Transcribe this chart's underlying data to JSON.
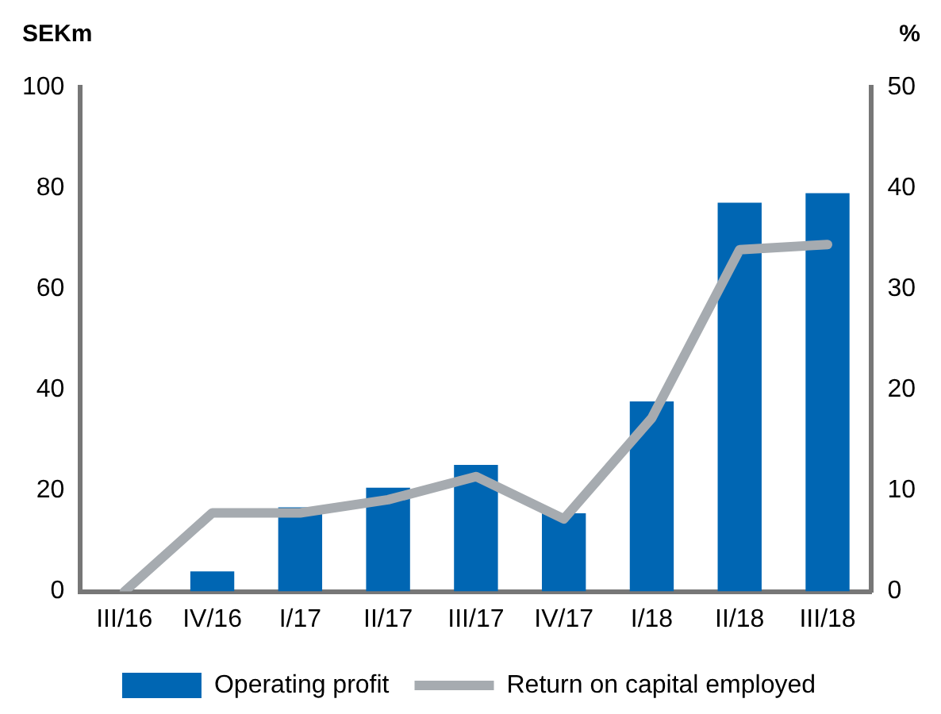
{
  "chart_data": {
    "type": "bar",
    "ylabel": "SEKm",
    "y2label": "%",
    "categories": [
      "III/16",
      "IV/16",
      "I/17",
      "II/17",
      "III/17",
      "IV/17",
      "I/18",
      "II/18",
      "III/18"
    ],
    "series": [
      {
        "name": "Operating profit",
        "color": "#0066b3",
        "values": [
          0,
          4,
          16.7,
          20.6,
          25.1,
          15.5,
          37.7,
          77.1,
          79.0
        ]
      },
      {
        "name": "Return on capital employed",
        "type": "line",
        "axis": "y2",
        "color": "#a6abb0",
        "values": [
          0,
          7.8,
          7.8,
          9.1,
          11.4,
          7.2,
          17.2,
          33.9,
          34.4
        ]
      }
    ],
    "ylim": [
      0,
      100
    ],
    "yticks": [
      0,
      20,
      40,
      60,
      80,
      100
    ],
    "y2lim": [
      0,
      50
    ],
    "y2ticks": [
      0,
      10,
      20,
      30,
      40,
      50
    ],
    "grid": false,
    "legend": "bottom",
    "marker": "none",
    "line_style": "solid"
  }
}
